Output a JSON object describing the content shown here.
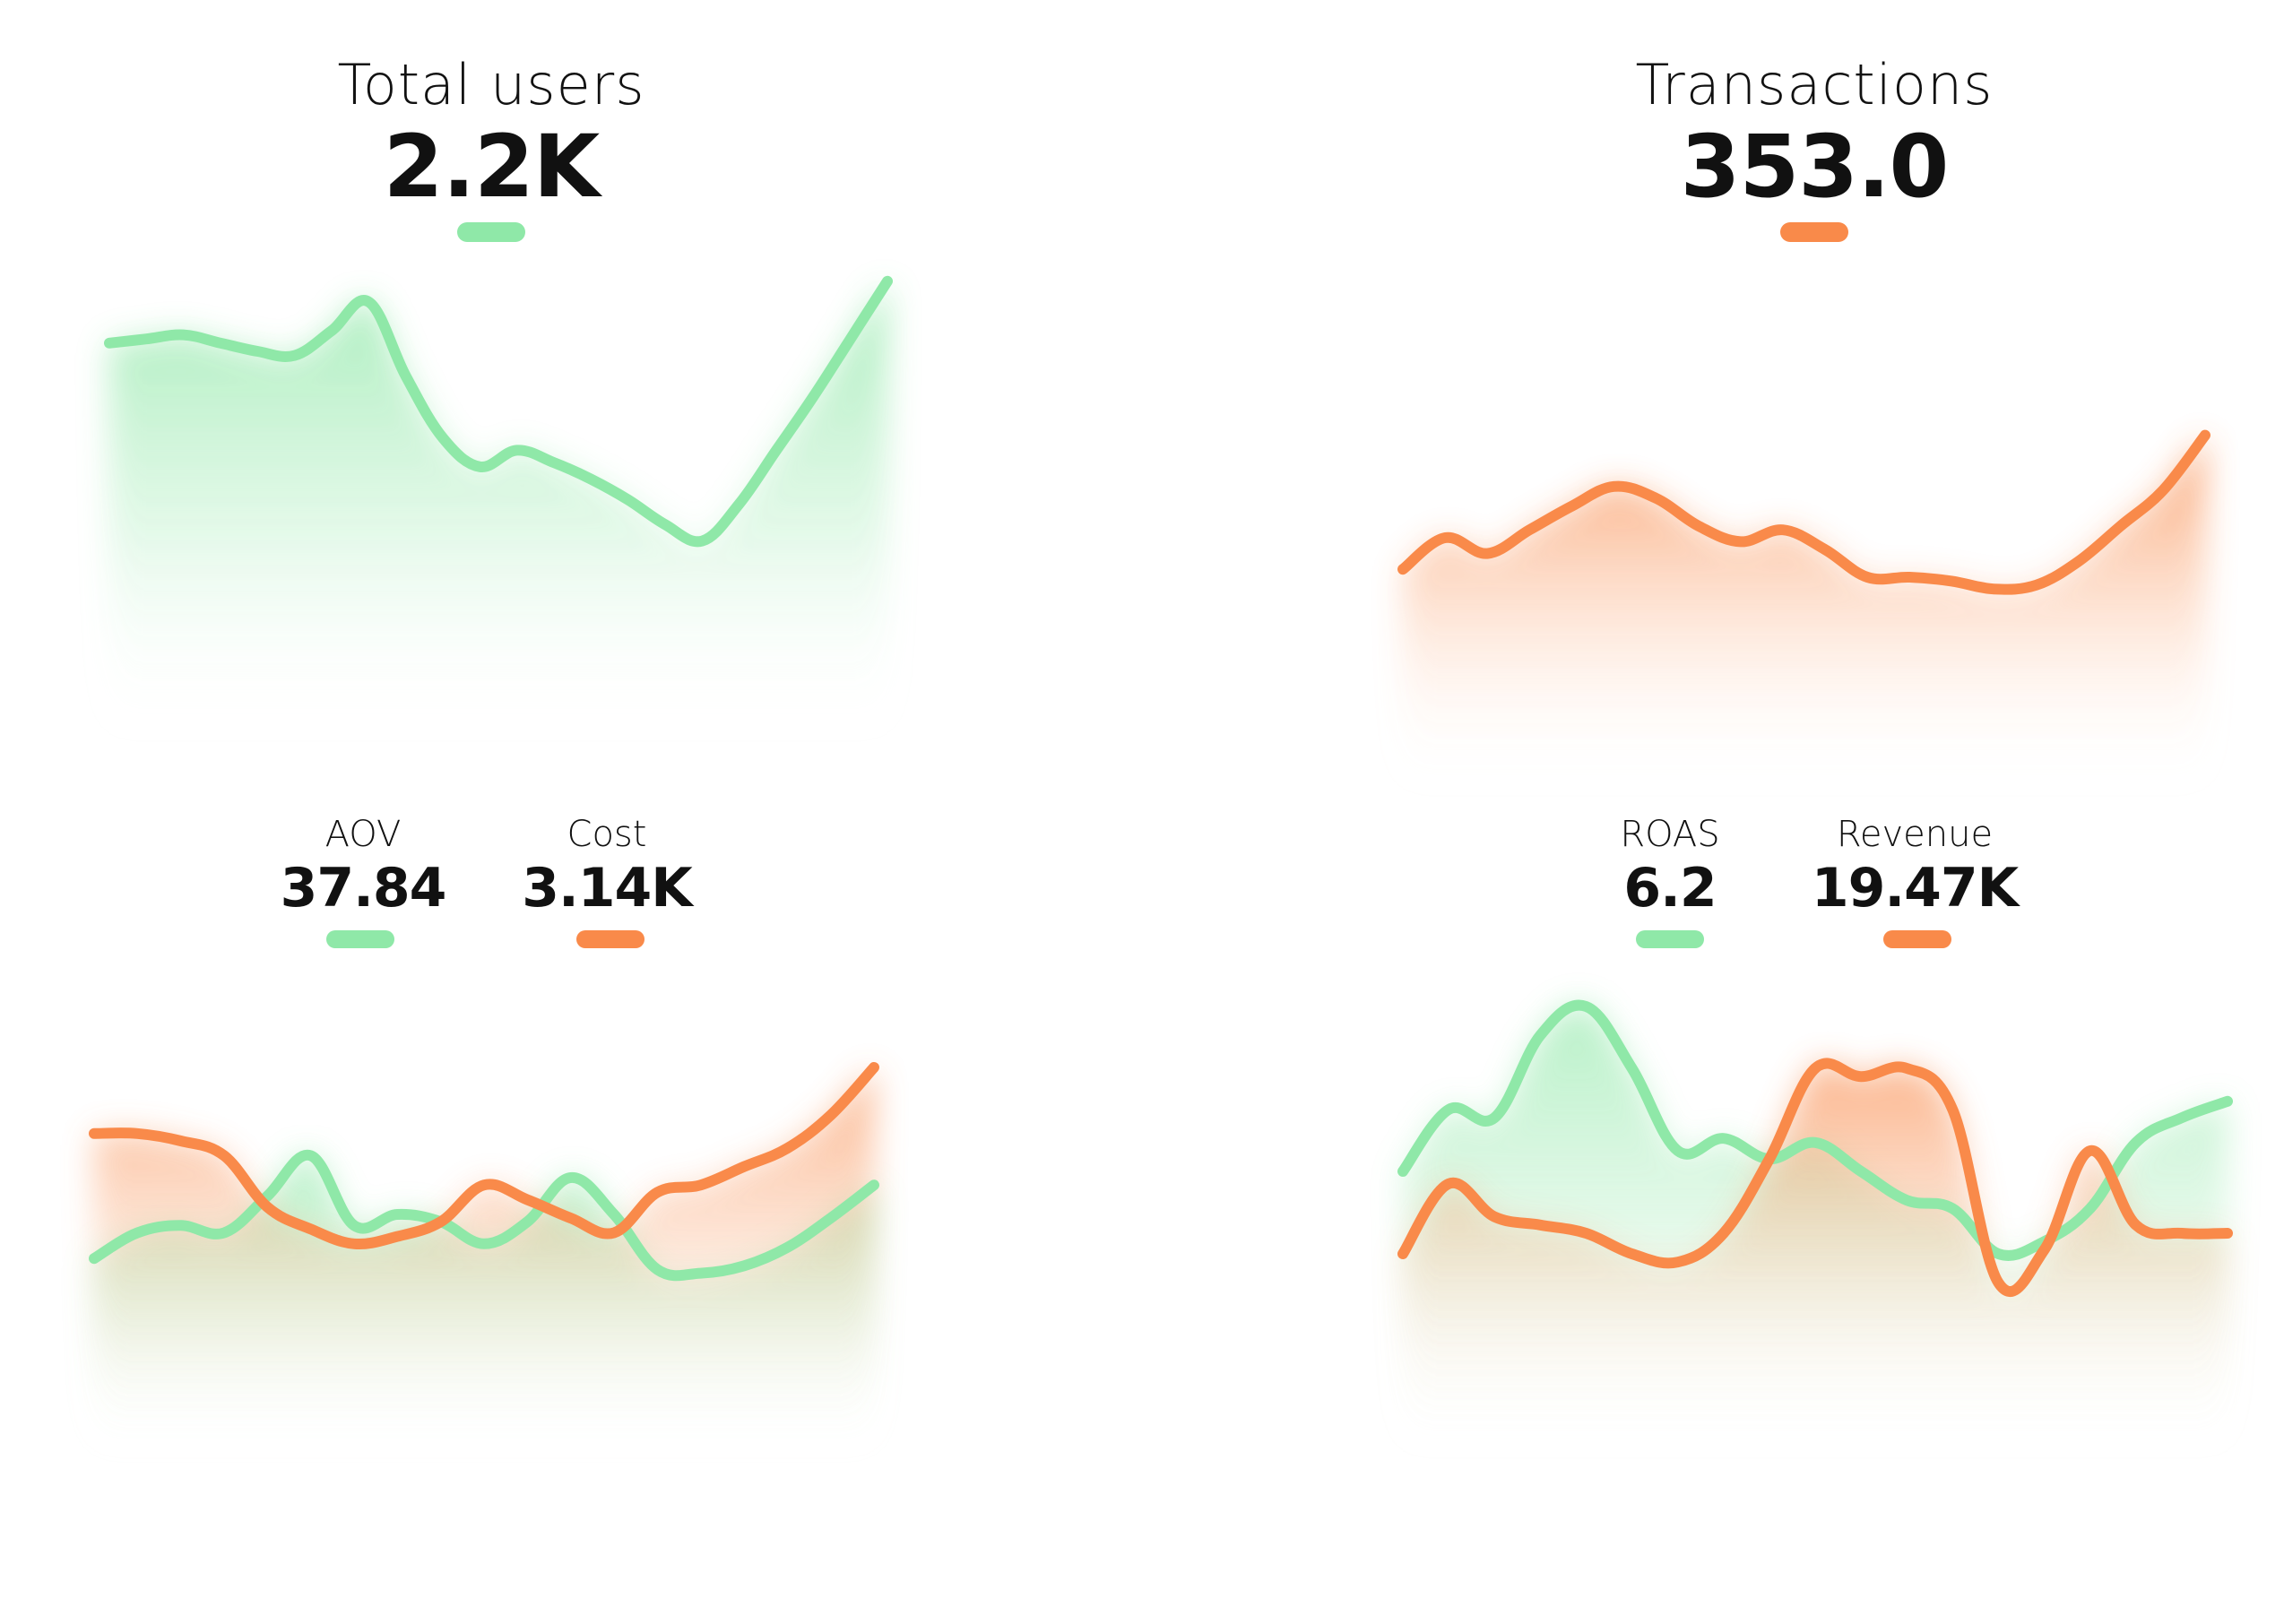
{
  "colors": {
    "green": "#8fe8a8",
    "orange": "#f98a4a"
  },
  "panels": {
    "total_users": {
      "title": "Total users",
      "value": "2.2K"
    },
    "transactions": {
      "title": "Transactions",
      "value": "353.0"
    },
    "aov_cost": {
      "metrics": [
        {
          "title": "AOV",
          "value": "37.84"
        },
        {
          "title": "Cost",
          "value": "3.14K"
        }
      ]
    },
    "roas_revenue": {
      "metrics": [
        {
          "title": "ROAS",
          "value": "6.2"
        },
        {
          "title": "Revenue",
          "value": "19.47K"
        }
      ]
    }
  },
  "chart_data": [
    {
      "type": "area",
      "title": "Total users",
      "series": [
        {
          "name": "Total users",
          "color": "green",
          "values": [
            0.82,
            0.83,
            0.84,
            0.82,
            0.8,
            0.79,
            0.85,
            0.92,
            0.74,
            0.59,
            0.52,
            0.56,
            0.53,
            0.49,
            0.44,
            0.38,
            0.34,
            0.43,
            0.56,
            0.69,
            0.83,
            0.97
          ]
        }
      ]
    },
    {
      "type": "area",
      "title": "Transactions",
      "series": [
        {
          "name": "Transactions",
          "color": "orange",
          "values": [
            0.42,
            0.5,
            0.46,
            0.52,
            0.58,
            0.63,
            0.6,
            0.53,
            0.49,
            0.52,
            0.47,
            0.4,
            0.4,
            0.39,
            0.37,
            0.38,
            0.44,
            0.53,
            0.62,
            0.76
          ]
        }
      ]
    },
    {
      "type": "area",
      "title": "AOV / Cost",
      "series": [
        {
          "name": "AOV",
          "color": "green",
          "values": [
            0.38,
            0.45,
            0.47,
            0.45,
            0.55,
            0.66,
            0.47,
            0.5,
            0.48,
            0.42,
            0.48,
            0.6,
            0.5,
            0.35,
            0.34,
            0.36,
            0.41,
            0.49,
            0.58
          ]
        },
        {
          "name": "Cost",
          "color": "orange",
          "values": [
            0.72,
            0.72,
            0.7,
            0.66,
            0.52,
            0.46,
            0.42,
            0.44,
            0.48,
            0.58,
            0.54,
            0.49,
            0.45,
            0.56,
            0.58,
            0.63,
            0.68,
            0.77,
            0.9
          ]
        }
      ]
    },
    {
      "type": "area",
      "title": "ROAS / Revenue",
      "series": [
        {
          "name": "ROAS",
          "color": "green",
          "values": [
            0.55,
            0.7,
            0.68,
            0.88,
            0.95,
            0.8,
            0.6,
            0.63,
            0.58,
            0.62,
            0.55,
            0.48,
            0.46,
            0.35,
            0.38,
            0.46,
            0.62,
            0.68,
            0.72
          ]
        },
        {
          "name": "Revenue",
          "color": "orange",
          "values": [
            0.35,
            0.52,
            0.44,
            0.42,
            0.4,
            0.35,
            0.33,
            0.4,
            0.58,
            0.8,
            0.78,
            0.8,
            0.7,
            0.28,
            0.36,
            0.6,
            0.42,
            0.4,
            0.4
          ]
        }
      ]
    }
  ]
}
